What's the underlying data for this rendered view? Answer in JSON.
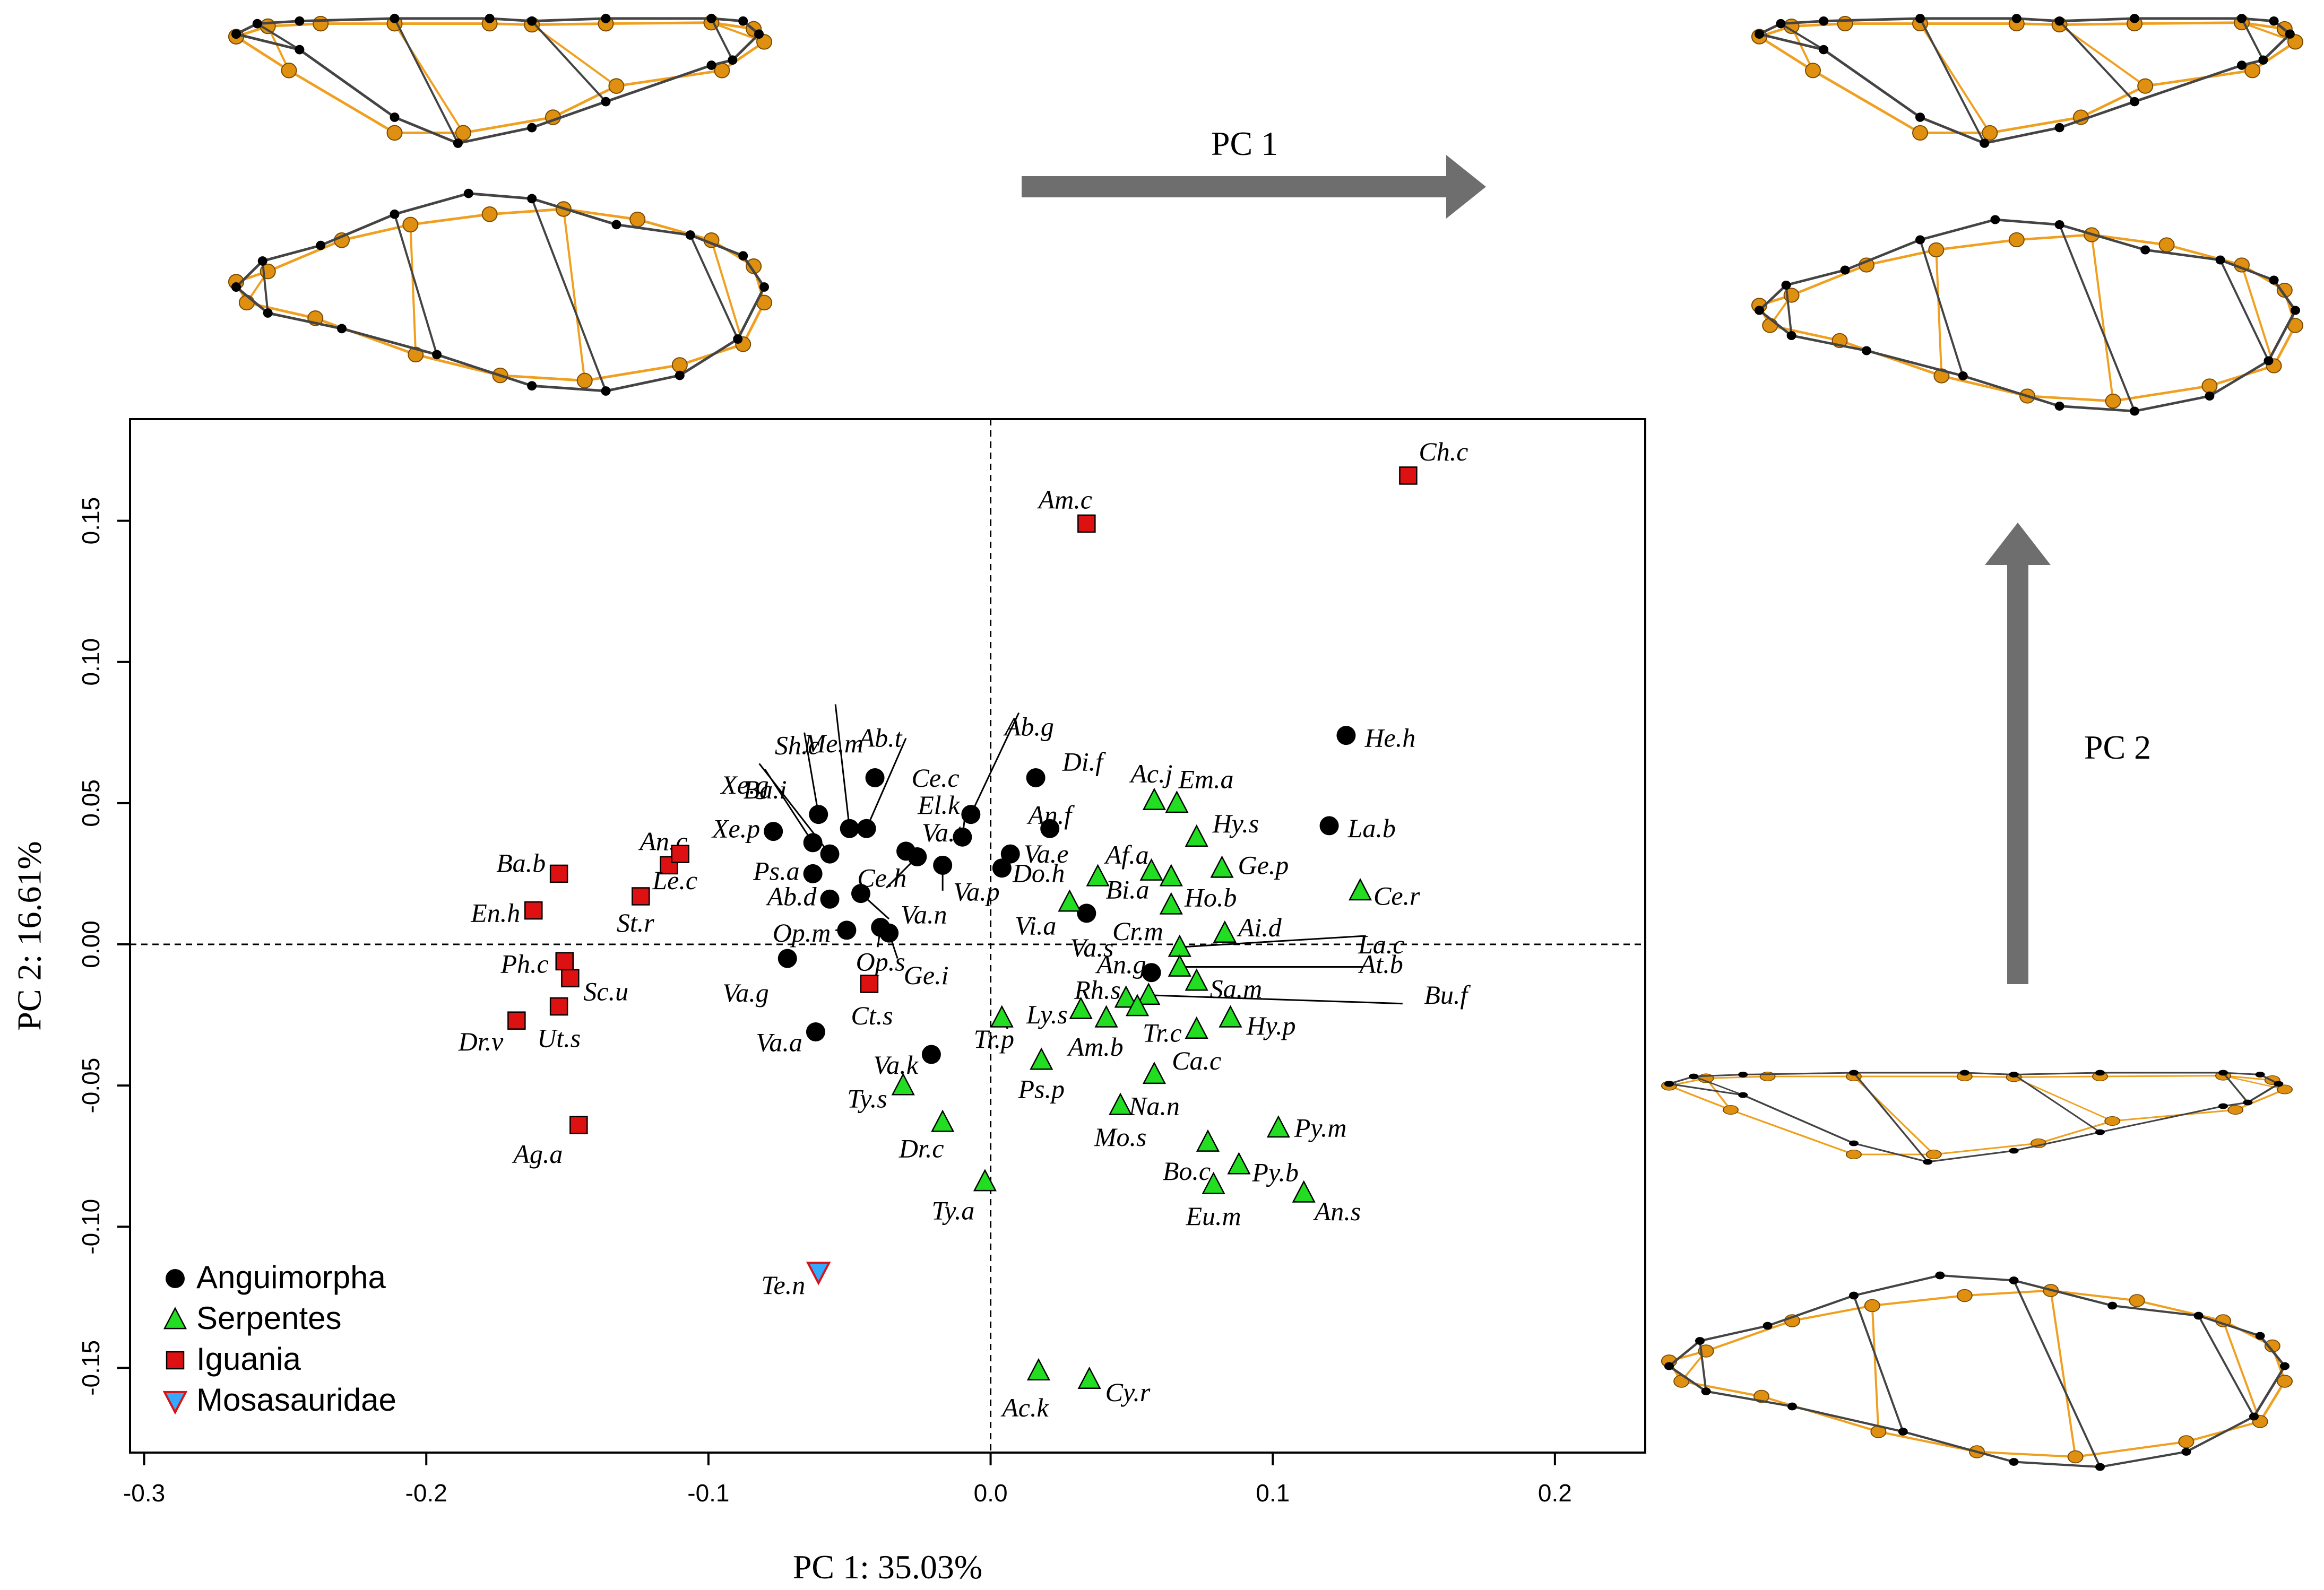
{
  "chart_data": {
    "type": "scatter",
    "title": "",
    "xlabel": "PC 1: 35.03%",
    "ylabel": "PC 2: 16.61%",
    "xlim": [
      -0.305,
      0.232
    ],
    "ylim": [
      -0.18,
      0.186
    ],
    "xticks": [
      -0.3,
      -0.2,
      -0.1,
      0.0,
      0.1,
      0.2
    ],
    "xtick_labels": [
      "-0.3",
      "-0.2",
      "-0.1",
      "0.0",
      "0.1",
      "0.2"
    ],
    "yticks": [
      -0.15,
      -0.1,
      -0.05,
      0.0,
      0.05,
      0.1,
      0.15
    ],
    "ytick_labels": [
      "-0.15",
      "-0.10",
      "-0.05",
      "0.00",
      "0.05",
      "0.10",
      "0.15"
    ],
    "reference_lines": {
      "x": 0,
      "y": 0,
      "style": "dashed"
    },
    "grid": false,
    "legend_position": "bottom-left",
    "series": [
      {
        "name": "Anguimorpha",
        "marker": "circle",
        "color": "#000000",
        "points": [
          {
            "label": "Me.m",
            "x": -0.05,
            "y": 0.041
          },
          {
            "label": "Sh.c",
            "x": -0.061,
            "y": 0.046
          },
          {
            "label": "Ab.t",
            "x": -0.041,
            "y": 0.059
          },
          {
            "label": "Ce.c",
            "x": -0.044,
            "y": 0.041
          },
          {
            "label": "Ab.g",
            "x": -0.007,
            "y": 0.046
          },
          {
            "label": "Xe.g",
            "x": -0.057,
            "y": 0.032
          },
          {
            "label": "Ba.i",
            "x": -0.063,
            "y": 0.036
          },
          {
            "label": "Xe.p",
            "x": -0.077,
            "y": 0.04
          },
          {
            "label": "Va.t",
            "x": -0.03,
            "y": 0.033
          },
          {
            "label": "El.k",
            "x": -0.01,
            "y": 0.038
          },
          {
            "label": "Ps.a",
            "x": -0.063,
            "y": 0.025
          },
          {
            "label": "Ce.h",
            "x": -0.026,
            "y": 0.031
          },
          {
            "label": "Va.p",
            "x": -0.017,
            "y": 0.028
          },
          {
            "label": "Ab.d",
            "x": -0.057,
            "y": 0.016
          },
          {
            "label": "Va.n",
            "x": -0.046,
            "y": 0.018
          },
          {
            "label": "Op.m",
            "x": -0.051,
            "y": 0.005
          },
          {
            "label": "Op.s",
            "x": -0.039,
            "y": 0.006
          },
          {
            "label": "Ge.i",
            "x": -0.036,
            "y": 0.004
          },
          {
            "label": "Va.g",
            "x": -0.072,
            "y": -0.005
          },
          {
            "label": "Va.a",
            "x": -0.062,
            "y": -0.031
          },
          {
            "label": "Va.k",
            "x": -0.021,
            "y": -0.039
          },
          {
            "label": "Di.f",
            "x": 0.016,
            "y": 0.059
          },
          {
            "label": "An.f",
            "x": 0.021,
            "y": 0.041
          },
          {
            "label": "Va.e",
            "x": 0.007,
            "y": 0.032
          },
          {
            "label": "Do.h",
            "x": 0.004,
            "y": 0.027
          },
          {
            "label": "Va.s",
            "x": 0.034,
            "y": 0.011
          },
          {
            "label": "An.g",
            "x": 0.057,
            "y": -0.01
          },
          {
            "label": "He.h",
            "x": 0.126,
            "y": 0.074
          },
          {
            "label": "La.b",
            "x": 0.12,
            "y": 0.042
          }
        ]
      },
      {
        "name": "Serpentes",
        "marker": "triangle-up",
        "color": "#22dd22",
        "points": [
          {
            "label": "Ac.j",
            "x": 0.058,
            "y": 0.051
          },
          {
            "label": "Em.a",
            "x": 0.066,
            "y": 0.05
          },
          {
            "label": "Hy.s",
            "x": 0.073,
            "y": 0.038
          },
          {
            "label": "Af.a",
            "x": 0.057,
            "y": 0.026
          },
          {
            "label": "Ge.p",
            "x": 0.082,
            "y": 0.027
          },
          {
            "label": "Ho.b",
            "x": 0.064,
            "y": 0.024
          },
          {
            "label": "Bi.a",
            "x": 0.038,
            "y": 0.024
          },
          {
            "label": "Vi.a",
            "x": 0.028,
            "y": 0.015
          },
          {
            "label": "Cr.m",
            "x": 0.064,
            "y": 0.014
          },
          {
            "label": "Ce.r",
            "x": 0.131,
            "y": 0.019
          },
          {
            "label": "Ai.d",
            "x": 0.083,
            "y": 0.004
          },
          {
            "label": "La.c",
            "x": 0.067,
            "y": -0.001
          },
          {
            "label": "At.b",
            "x": 0.067,
            "y": -0.008
          },
          {
            "label": "Sa.m",
            "x": 0.073,
            "y": -0.013
          },
          {
            "label": "Rh.s",
            "x": 0.048,
            "y": -0.019
          },
          {
            "label": "Bu.f",
            "x": 0.056,
            "y": -0.018
          },
          {
            "label": "Ly.s",
            "x": 0.032,
            "y": -0.023
          },
          {
            "label": "Tr.c",
            "x": 0.052,
            "y": -0.022
          },
          {
            "label": "Am.b",
            "x": 0.041,
            "y": -0.026
          },
          {
            "label": "Hy.p",
            "x": 0.085,
            "y": -0.026
          },
          {
            "label": "Tr.p",
            "x": 0.004,
            "y": -0.026
          },
          {
            "label": "Ca.c",
            "x": 0.073,
            "y": -0.03
          },
          {
            "label": "Ps.p",
            "x": 0.018,
            "y": -0.041
          },
          {
            "label": "Na.n",
            "x": 0.058,
            "y": -0.046
          },
          {
            "label": "Ty.s",
            "x": -0.031,
            "y": -0.05
          },
          {
            "label": "Mo.s",
            "x": 0.046,
            "y": -0.057
          },
          {
            "label": "Dr.c",
            "x": -0.017,
            "y": -0.063
          },
          {
            "label": "Py.m",
            "x": 0.102,
            "y": -0.065
          },
          {
            "label": "Bo.c",
            "x": 0.077,
            "y": -0.07
          },
          {
            "label": "Py.b",
            "x": 0.088,
            "y": -0.078
          },
          {
            "label": "Ty.a",
            "x": -0.002,
            "y": -0.084
          },
          {
            "label": "Eu.m",
            "x": 0.079,
            "y": -0.085
          },
          {
            "label": "An.s",
            "x": 0.111,
            "y": -0.088
          },
          {
            "label": "Ac.k",
            "x": 0.017,
            "y": -0.151
          },
          {
            "label": "Cy.r",
            "x": 0.035,
            "y": -0.154
          }
        ]
      },
      {
        "name": "Iguania",
        "marker": "square",
        "color": "#dd1111",
        "points": [
          {
            "label": "Am.c",
            "x": 0.034,
            "y": 0.149
          },
          {
            "label": "Ch.c",
            "x": 0.148,
            "y": 0.166
          },
          {
            "label": "Ba.b",
            "x": -0.153,
            "y": 0.025
          },
          {
            "label": "An.c",
            "x": -0.114,
            "y": 0.028
          },
          {
            "label": "Le.c",
            "x": -0.11,
            "y": 0.032
          },
          {
            "label": "En.h",
            "x": -0.162,
            "y": 0.012
          },
          {
            "label": "St.r",
            "x": -0.124,
            "y": 0.017
          },
          {
            "label": "Ph.c",
            "x": -0.151,
            "y": -0.006
          },
          {
            "label": "Sc.u",
            "x": -0.149,
            "y": -0.012
          },
          {
            "label": "Ut.s",
            "x": -0.153,
            "y": -0.022
          },
          {
            "label": "Dr.v",
            "x": -0.168,
            "y": -0.027
          },
          {
            "label": "Ag.a",
            "x": -0.146,
            "y": -0.064
          },
          {
            "label": "Ct.s",
            "x": -0.043,
            "y": -0.014
          }
        ]
      },
      {
        "name": "Mosasauridae",
        "marker": "triangle-down",
        "color": "#33aaff",
        "edge_color": "#dd1111",
        "points": [
          {
            "label": "Te.n",
            "x": -0.061,
            "y": -0.116
          }
        ]
      }
    ],
    "leader_lines": [
      {
        "label": "Me.m",
        "from": [
          -0.055,
          0.085
        ],
        "to": [
          -0.05,
          0.041
        ]
      },
      {
        "label": "Sh.c",
        "from": [
          -0.066,
          0.075
        ],
        "to": [
          -0.061,
          0.046
        ]
      },
      {
        "label": "Ce.c",
        "from": [
          -0.03,
          0.073
        ],
        "to": [
          -0.044,
          0.041
        ]
      },
      {
        "label": "Ab.g",
        "from": [
          0.01,
          0.082
        ],
        "to": [
          -0.007,
          0.046
        ]
      },
      {
        "label": "Xe.g",
        "from": [
          -0.082,
          0.064
        ],
        "to": [
          -0.057,
          0.032
        ]
      },
      {
        "label": "Ba.i",
        "from": [
          -0.08,
          0.062
        ],
        "to": [
          -0.063,
          0.036
        ]
      },
      {
        "label": "Va.n",
        "from": [
          -0.036,
          0.009
        ],
        "to": [
          -0.046,
          0.018
        ]
      },
      {
        "label": "Op.m",
        "from": [
          -0.055,
          0.005
        ],
        "to": [
          -0.051,
          0.005
        ]
      },
      {
        "label": "Op.s",
        "from": [
          -0.04,
          -0.001
        ],
        "to": [
          -0.039,
          0.006
        ]
      },
      {
        "label": "Ge.i",
        "from": [
          -0.033,
          -0.005
        ],
        "to": [
          -0.036,
          0.004
        ]
      },
      {
        "label": "El.k",
        "from": [
          -0.009,
          0.046
        ],
        "to": [
          -0.01,
          0.038
        ]
      },
      {
        "label": "Va.p",
        "from": [
          -0.017,
          0.019
        ],
        "to": [
          -0.017,
          0.028
        ]
      },
      {
        "label": "Ce.h",
        "from": [
          -0.037,
          0.02
        ],
        "to": [
          -0.026,
          0.031
        ]
      },
      {
        "label": "La.c",
        "from": [
          0.133,
          0.003
        ],
        "to": [
          0.067,
          -0.001
        ]
      },
      {
        "label": "At.b",
        "from": [
          0.132,
          -0.008
        ],
        "to": [
          0.067,
          -0.008
        ]
      },
      {
        "label": "Bu.f",
        "from": [
          0.146,
          -0.021
        ],
        "to": [
          0.056,
          -0.018
        ]
      },
      {
        "label": "Tr.p",
        "from": [
          0.006,
          -0.03
        ],
        "to": [
          0.004,
          -0.026
        ]
      },
      {
        "label": "Rh.s",
        "from": [
          0.048,
          -0.019
        ],
        "to": [
          0.048,
          -0.019
        ]
      }
    ],
    "arrows": [
      {
        "label": "PC 1",
        "direction": "right"
      },
      {
        "label": "PC 2",
        "direction": "up"
      }
    ],
    "wireframes": [
      {
        "name": "pc1-negative-lateral"
      },
      {
        "name": "pc1-negative-ventral"
      },
      {
        "name": "pc1-positive-lateral"
      },
      {
        "name": "pc1-positive-ventral"
      },
      {
        "name": "pc2-positive-lateral"
      },
      {
        "name": "pc2-positive-ventral"
      }
    ],
    "colors": {
      "wire_black": "#444444",
      "wire_orange": "#f0a020",
      "node_orange": "#e09010",
      "arrow_gray": "#6e6e6e"
    }
  }
}
